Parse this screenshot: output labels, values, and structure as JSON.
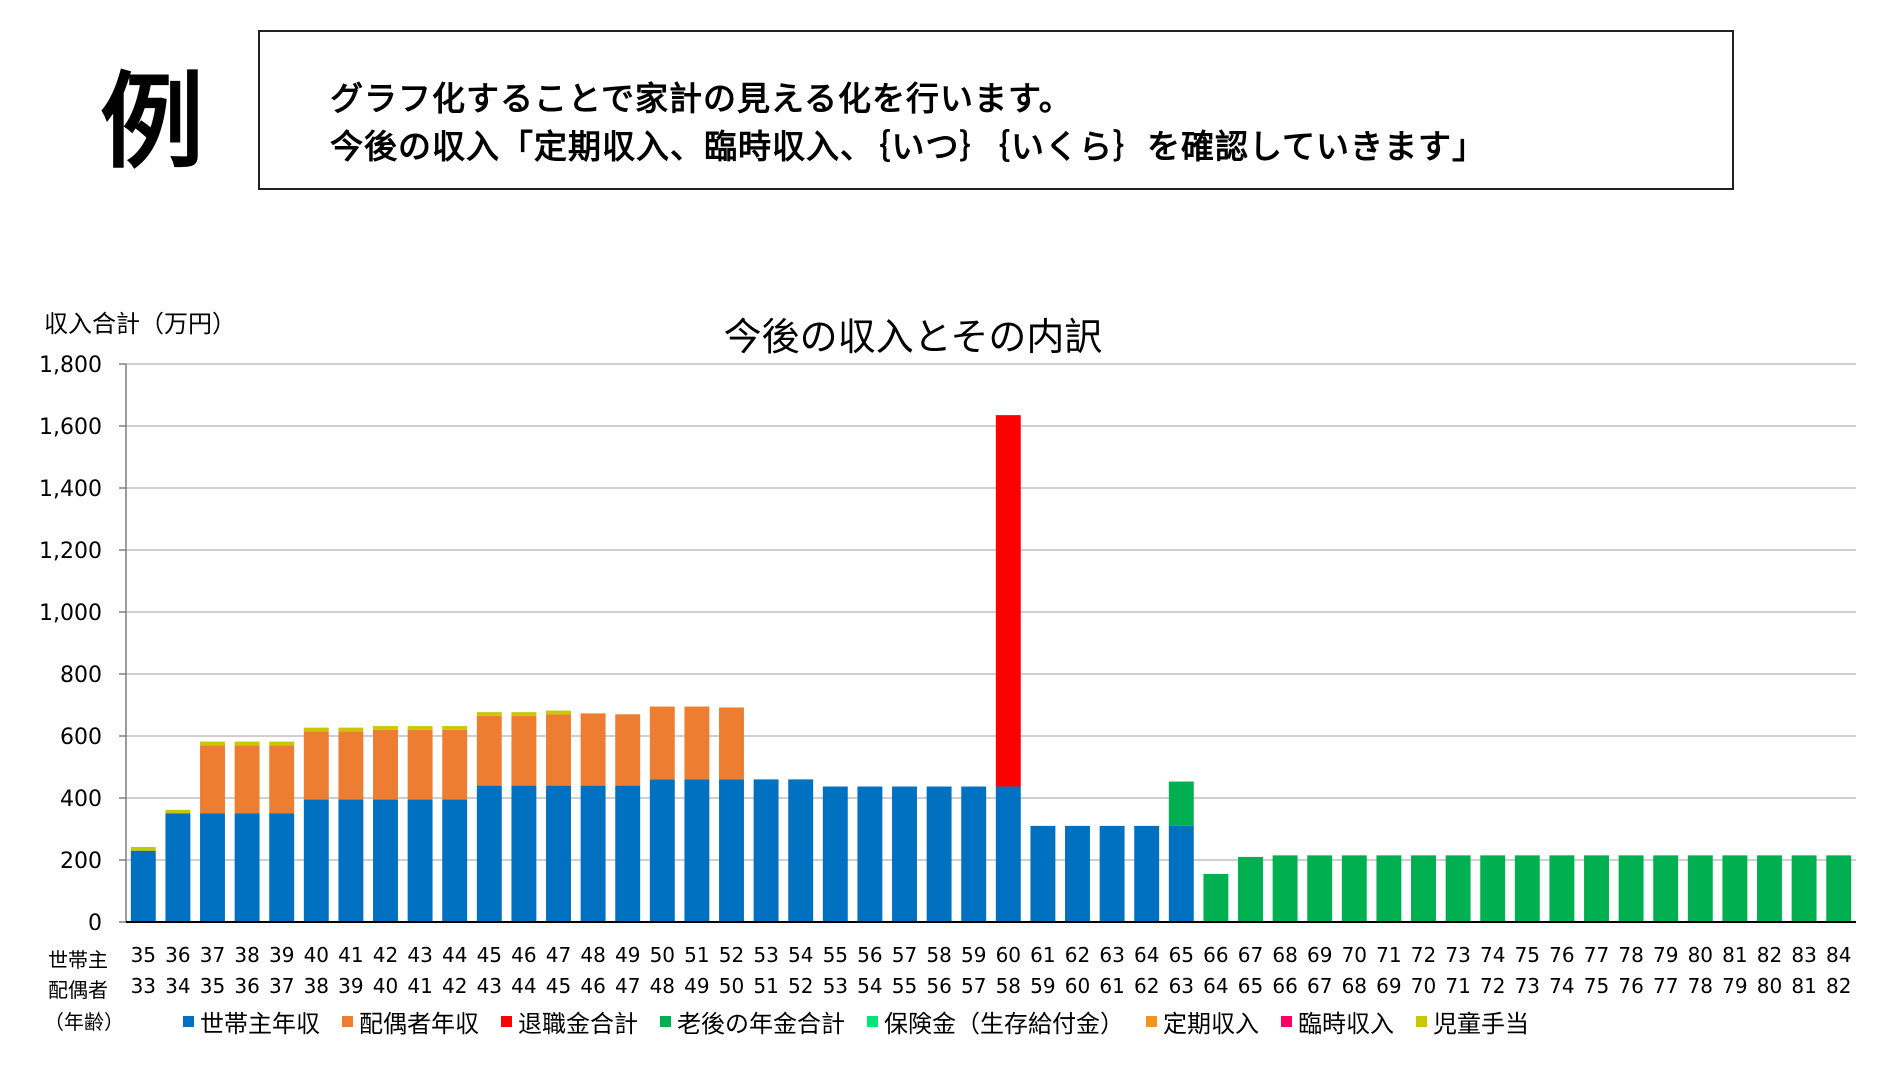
{
  "example_label": "例",
  "intro": {
    "line1": "グラフ化することで家計の見える化を行います。",
    "line2": "今後の収入「定期収入、臨時収入、｛いつ｝｛いくら｝を確認していきます」"
  },
  "row_labels": {
    "head": "世帯主",
    "spouse": "配偶者",
    "age": "（年齢）"
  },
  "colors": {
    "head_income": "#0070C0",
    "spouse_income": "#ED7D31",
    "retirement": "#FF0000",
    "pension": "#00B050",
    "insurance": "#00E676",
    "regular": "#F7941D",
    "temporary": "#FF0066",
    "child_allowance": "#C8C800",
    "grid": "#BFBFBF"
  },
  "chart_data": {
    "type": "bar",
    "stacked": true,
    "title": "今後の収入とその内訳",
    "ylabel": "収入合計（万円）",
    "ylim": [
      0,
      1800
    ],
    "yticks": [
      "0",
      "200",
      "400",
      "600",
      "800",
      "1,000",
      "1,200",
      "1,400",
      "1,600",
      "1,800"
    ],
    "ytick_values": [
      0,
      200,
      400,
      600,
      800,
      1000,
      1200,
      1400,
      1600,
      1800
    ],
    "grid": true,
    "legend_position": "bottom",
    "categories": [
      "35",
      "36",
      "37",
      "38",
      "39",
      "40",
      "41",
      "42",
      "43",
      "44",
      "45",
      "46",
      "47",
      "48",
      "49",
      "50",
      "51",
      "52",
      "53",
      "54",
      "55",
      "56",
      "57",
      "58",
      "59",
      "60",
      "61",
      "62",
      "63",
      "64",
      "65",
      "66",
      "67",
      "68",
      "69",
      "70",
      "71",
      "72",
      "73",
      "74",
      "75",
      "76",
      "77",
      "78",
      "79",
      "80",
      "81",
      "82",
      "83",
      "84"
    ],
    "secondary_categories": [
      "33",
      "34",
      "35",
      "36",
      "37",
      "38",
      "39",
      "40",
      "41",
      "42",
      "43",
      "44",
      "45",
      "46",
      "47",
      "48",
      "49",
      "50",
      "51",
      "52",
      "53",
      "54",
      "55",
      "56",
      "57",
      "58",
      "59",
      "60",
      "61",
      "62",
      "63",
      "64",
      "65",
      "66",
      "67",
      "68",
      "69",
      "70",
      "71",
      "72",
      "73",
      "74",
      "75",
      "76",
      "77",
      "78",
      "79",
      "80",
      "81",
      "82"
    ],
    "series": [
      {
        "name": "世帯主年収",
        "color_key": "head_income",
        "values": [
          230,
          350,
          350,
          350,
          350,
          395,
          395,
          395,
          395,
          395,
          440,
          440,
          440,
          440,
          440,
          460,
          460,
          460,
          460,
          460,
          437,
          437,
          437,
          437,
          437,
          437,
          310,
          310,
          310,
          310,
          310,
          0,
          0,
          0,
          0,
          0,
          0,
          0,
          0,
          0,
          0,
          0,
          0,
          0,
          0,
          0,
          0,
          0,
          0,
          0
        ]
      },
      {
        "name": "配偶者年収",
        "color_key": "spouse_income",
        "values": [
          0,
          0,
          220,
          220,
          220,
          220,
          220,
          225,
          225,
          225,
          225,
          225,
          230,
          233,
          230,
          235,
          235,
          232,
          0,
          0,
          0,
          0,
          0,
          0,
          0,
          0,
          0,
          0,
          0,
          0,
          0,
          0,
          0,
          0,
          0,
          0,
          0,
          0,
          0,
          0,
          0,
          0,
          0,
          0,
          0,
          0,
          0,
          0,
          0,
          0
        ]
      },
      {
        "name": "退職金合計",
        "color_key": "retirement",
        "values": [
          0,
          0,
          0,
          0,
          0,
          0,
          0,
          0,
          0,
          0,
          0,
          0,
          0,
          0,
          0,
          0,
          0,
          0,
          0,
          0,
          0,
          0,
          0,
          0,
          0,
          1198,
          0,
          0,
          0,
          0,
          0,
          0,
          0,
          0,
          0,
          0,
          0,
          0,
          0,
          0,
          0,
          0,
          0,
          0,
          0,
          0,
          0,
          0,
          0,
          0
        ]
      },
      {
        "name": "老後の年金合計",
        "color_key": "pension",
        "values": [
          0,
          0,
          0,
          0,
          0,
          0,
          0,
          0,
          0,
          0,
          0,
          0,
          0,
          0,
          0,
          0,
          0,
          0,
          0,
          0,
          0,
          0,
          0,
          0,
          0,
          0,
          0,
          0,
          0,
          0,
          143,
          155,
          210,
          215,
          215,
          215,
          215,
          215,
          215,
          215,
          215,
          215,
          215,
          215,
          215,
          215,
          215,
          215,
          215,
          215
        ]
      },
      {
        "name": "保険金（生存給付金）",
        "color_key": "insurance",
        "values": [
          0,
          0,
          0,
          0,
          0,
          0,
          0,
          0,
          0,
          0,
          0,
          0,
          0,
          0,
          0,
          0,
          0,
          0,
          0,
          0,
          0,
          0,
          0,
          0,
          0,
          0,
          0,
          0,
          0,
          0,
          0,
          0,
          0,
          0,
          0,
          0,
          0,
          0,
          0,
          0,
          0,
          0,
          0,
          0,
          0,
          0,
          0,
          0,
          0,
          0
        ]
      },
      {
        "name": "定期収入",
        "color_key": "regular",
        "values": [
          0,
          0,
          0,
          0,
          0,
          0,
          0,
          0,
          0,
          0,
          0,
          0,
          0,
          0,
          0,
          0,
          0,
          0,
          0,
          0,
          0,
          0,
          0,
          0,
          0,
          0,
          0,
          0,
          0,
          0,
          0,
          0,
          0,
          0,
          0,
          0,
          0,
          0,
          0,
          0,
          0,
          0,
          0,
          0,
          0,
          0,
          0,
          0,
          0,
          0
        ]
      },
      {
        "name": "臨時収入",
        "color_key": "temporary",
        "values": [
          0,
          0,
          0,
          0,
          0,
          0,
          0,
          0,
          0,
          0,
          0,
          0,
          0,
          0,
          0,
          0,
          0,
          0,
          0,
          0,
          0,
          0,
          0,
          0,
          0,
          0,
          0,
          0,
          0,
          0,
          0,
          0,
          0,
          0,
          0,
          0,
          0,
          0,
          0,
          0,
          0,
          0,
          0,
          0,
          0,
          0,
          0,
          0,
          0,
          0
        ]
      },
      {
        "name": "児童手当",
        "color_key": "child_allowance",
        "values": [
          12,
          12,
          12,
          12,
          12,
          12,
          12,
          12,
          12,
          12,
          12,
          12,
          12,
          0,
          0,
          0,
          0,
          0,
          0,
          0,
          0,
          0,
          0,
          0,
          0,
          0,
          0,
          0,
          0,
          0,
          0,
          0,
          0,
          0,
          0,
          0,
          0,
          0,
          0,
          0,
          0,
          0,
          0,
          0,
          0,
          0,
          0,
          0,
          0,
          0
        ]
      }
    ]
  }
}
